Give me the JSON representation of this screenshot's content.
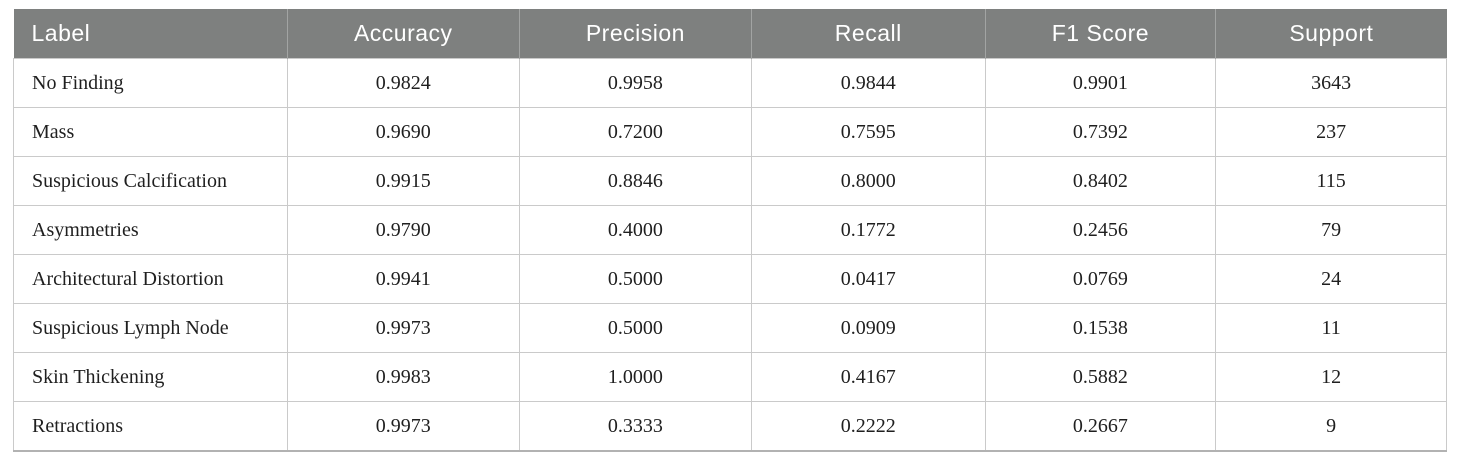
{
  "colors": {
    "header_bg": "#7e807f",
    "header_text": "#ffffff",
    "body_text": "#1f1f1f",
    "grid_line": "#cacaca",
    "header_divider": "#a2a4a3",
    "bottom_border": "#b2b2b2"
  },
  "chart_data": {
    "type": "table",
    "columns": [
      "Label",
      "Accuracy",
      "Precision",
      "Recall",
      "F1 Score",
      "Support"
    ],
    "rows": [
      [
        "No Finding",
        "0.9824",
        "0.9958",
        "0.9844",
        "0.9901",
        "3643"
      ],
      [
        "Mass",
        "0.9690",
        "0.7200",
        "0.7595",
        "0.7392",
        "237"
      ],
      [
        "Suspicious Calcification",
        "0.9915",
        "0.8846",
        "0.8000",
        "0.8402",
        "115"
      ],
      [
        "Asymmetries",
        "0.9790",
        "0.4000",
        "0.1772",
        "0.2456",
        "79"
      ],
      [
        "Architectural Distortion",
        "0.9941",
        "0.5000",
        "0.0417",
        "0.0769",
        "24"
      ],
      [
        "Suspicious Lymph Node",
        "0.9973",
        "0.5000",
        "0.0909",
        "0.1538",
        "11"
      ],
      [
        "Skin Thickening",
        "0.9983",
        "1.0000",
        "0.4167",
        "0.5882",
        "12"
      ],
      [
        "Retractions",
        "0.9973",
        "0.3333",
        "0.2222",
        "0.2667",
        "9"
      ]
    ]
  }
}
